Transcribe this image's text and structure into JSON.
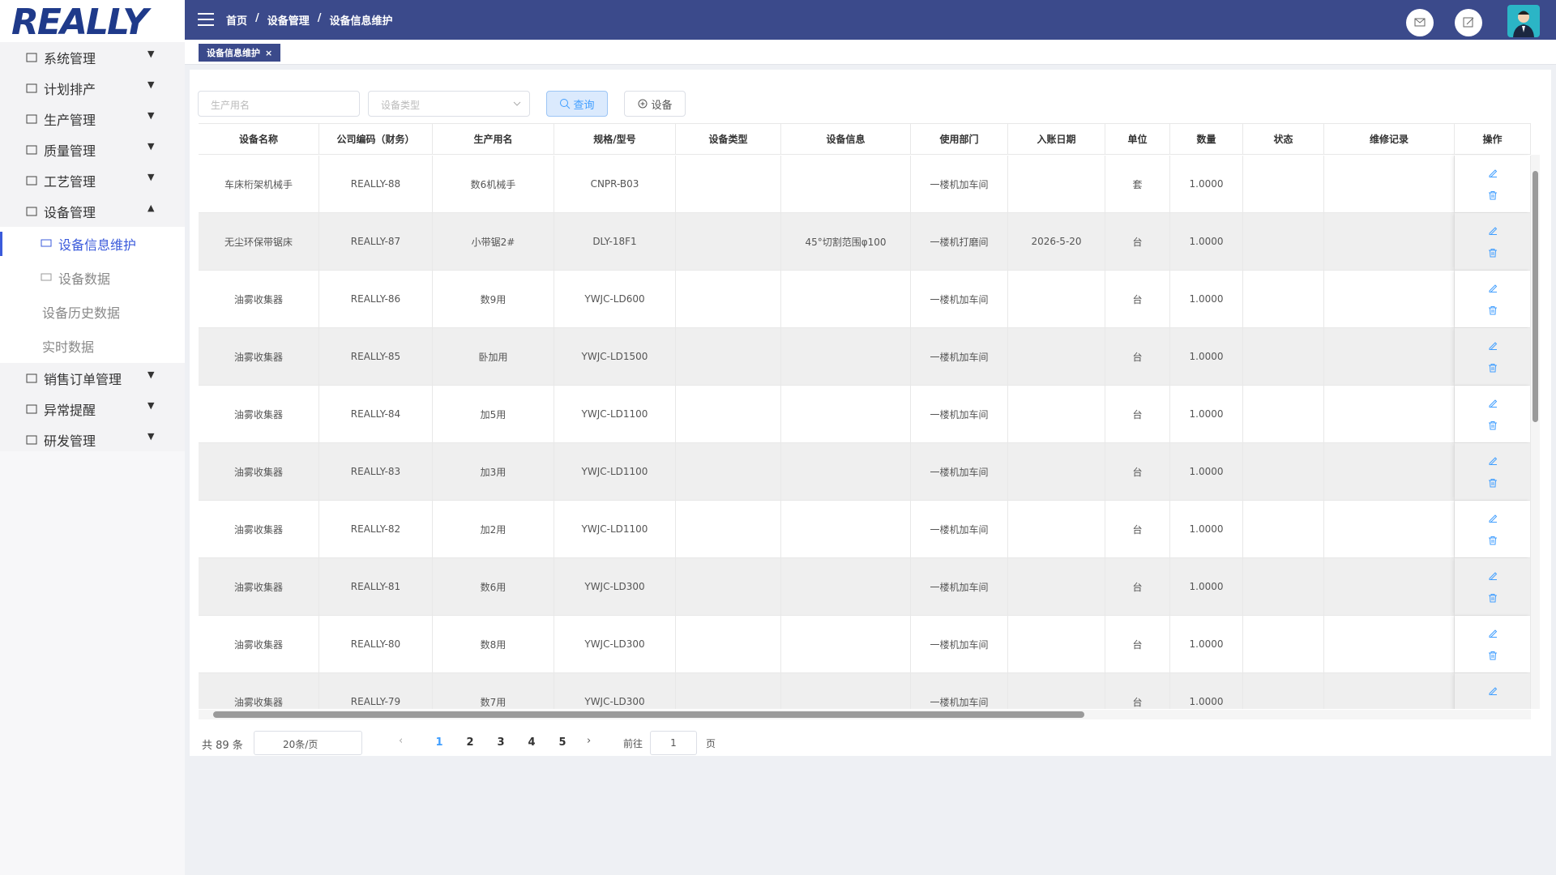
{
  "logo": "REALLY",
  "header": {
    "breadcrumb": [
      "首页",
      "设备管理",
      "设备信息维护"
    ]
  },
  "sidebar": {
    "menu": [
      {
        "label": "系统管理"
      },
      {
        "label": "计划排产"
      },
      {
        "label": "生产管理"
      },
      {
        "label": "质量管理"
      },
      {
        "label": "工艺管理"
      },
      {
        "label": "设备管理",
        "children": [
          "设备信息维护",
          "设备数据",
          "设备历史数据",
          "实时数据"
        ]
      },
      {
        "label": "销售订单管理"
      },
      {
        "label": "异常提醒"
      },
      {
        "label": "研发管理"
      }
    ]
  },
  "tabs": [
    "设备信息维护"
  ],
  "filters": {
    "name_placeholder": "生产用名",
    "type_placeholder": "设备类型",
    "search": "查询",
    "add": "设备"
  },
  "table": {
    "columns": [
      "设备名称",
      "公司编码（财务）",
      "生产用名",
      "规格/型号",
      "设备类型",
      "设备信息",
      "使用部门",
      "入账日期",
      "单位",
      "数量",
      "状态",
      "维修记录",
      "操作"
    ],
    "rows": [
      [
        "车床桁架机械手",
        "REALLY-88",
        "数6机械手",
        "CNPR-B03",
        null,
        null,
        "一楼机加车间",
        null,
        "套",
        "1.0000",
        null,
        null
      ],
      [
        "无尘环保带锯床",
        "REALLY-87",
        "小带锯2#",
        "DLY-18F1",
        null,
        "45°切割范围φ100",
        "一楼机打磨间",
        "2026-5-20",
        "台",
        "1.0000",
        null,
        null
      ],
      [
        "油雾收集器",
        "REALLY-86",
        "数9用",
        "YWJC-LD600",
        null,
        null,
        "一楼机加车间",
        null,
        "台",
        "1.0000",
        null,
        null
      ],
      [
        "油雾收集器",
        "REALLY-85",
        "卧加用",
        "YWJC-LD1500",
        null,
        null,
        "一楼机加车间",
        null,
        "台",
        "1.0000",
        null,
        null
      ],
      [
        "油雾收集器",
        "REALLY-84",
        "加5用",
        "YWJC-LD1100",
        null,
        null,
        "一楼机加车间",
        null,
        "台",
        "1.0000",
        null,
        null
      ],
      [
        "油雾收集器",
        "REALLY-83",
        "加3用",
        "YWJC-LD1100",
        null,
        null,
        "一楼机加车间",
        null,
        "台",
        "1.0000",
        null,
        null
      ],
      [
        "油雾收集器",
        "REALLY-82",
        "加2用",
        "YWJC-LD1100",
        null,
        null,
        "一楼机加车间",
        null,
        "台",
        "1.0000",
        null,
        null
      ],
      [
        "油雾收集器",
        "REALLY-81",
        "数6用",
        "YWJC-LD300",
        null,
        null,
        "一楼机加车间",
        null,
        "台",
        "1.0000",
        null,
        null
      ],
      [
        "油雾收集器",
        "REALLY-80",
        "数8用",
        "YWJC-LD300",
        null,
        null,
        "一楼机加车间",
        null,
        "台",
        "1.0000",
        null,
        null
      ],
      [
        "油雾收集器",
        "REALLY-79",
        "数7用",
        "YWJC-LD300",
        null,
        null,
        "一楼机加车间",
        null,
        "台",
        "1.0000",
        null,
        null
      ]
    ]
  },
  "pagination": {
    "total": "共 89 条",
    "page_size": "20条/页",
    "pages": [
      1,
      2,
      3,
      4,
      5
    ],
    "goto": "前往",
    "goto_value": 1,
    "unit": "页"
  }
}
